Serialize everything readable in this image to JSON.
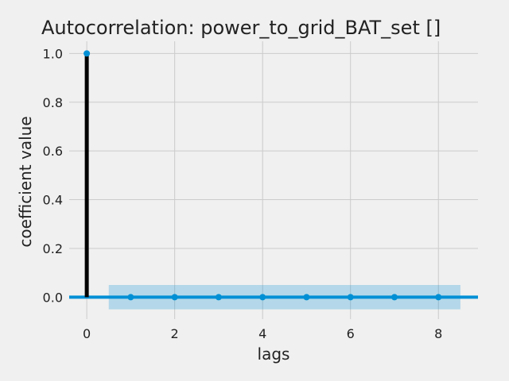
{
  "chart_data": {
    "type": "scatter",
    "title": "Autocorrelation: power_to_grid_BAT_set []",
    "xlabel": "lags",
    "ylabel": "coefficient value",
    "lags": [
      0,
      1,
      2,
      3,
      4,
      5,
      6,
      7,
      8
    ],
    "values": [
      1.0,
      0.0,
      0.0,
      0.0,
      0.0,
      0.0,
      0.0,
      0.0,
      0.0
    ],
    "confidence_band": {
      "lower": -0.05,
      "upper": 0.05,
      "from_lag": 0.5,
      "to_lag": 8.5
    },
    "xticks": [
      0,
      2,
      4,
      6,
      8
    ],
    "yticks": [
      0.0,
      0.2,
      0.4,
      0.6,
      0.8,
      1.0
    ],
    "xlim": [
      -0.4,
      8.9
    ],
    "ylim": [
      -0.09,
      1.05
    ],
    "grid": true,
    "colors": {
      "background": "#f0f0f0",
      "grid": "#cbcbcb",
      "stem": "#000000",
      "marker": "#008fd5",
      "baseline": "#008fd5",
      "band": "#008fd5"
    }
  }
}
